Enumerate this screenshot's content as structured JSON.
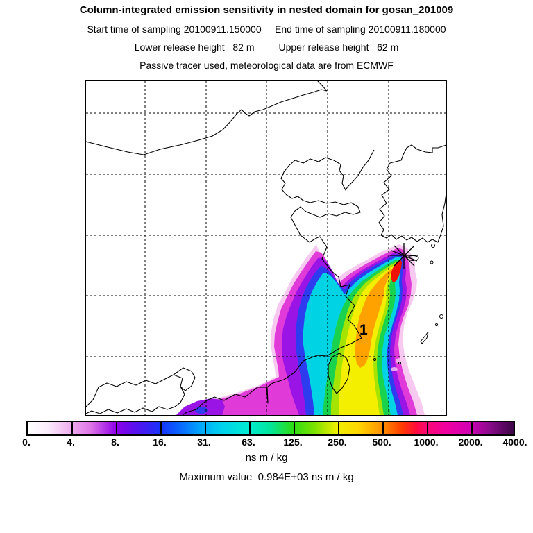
{
  "header": {
    "title": "Column-integrated emission sensitivity in nested domain for gosan_201009",
    "line2": "Start time of sampling 20100911.150000     End time of sampling 20100911.180000",
    "line3": "Lower release height   82 m         Upper release height   62 m",
    "line4": "Passive tracer used, meteorological data are from ECMWF"
  },
  "map": {
    "plume_label": "1",
    "coastline_color": "#000000",
    "grid_color": "#000000",
    "marker_color": "#000000"
  },
  "plume": {
    "band_colors": [
      "#f7c8f0",
      "#e03ad8",
      "#9a14e6",
      "#2e3cf0",
      "#00d4e4",
      "#19d24e",
      "#a4e400",
      "#f4ee00",
      "#ffa200",
      "#f01000"
    ],
    "tail_purple": "#9a14e6",
    "tail_blue": "#2e3cf0",
    "fringe_pink": "#f7c8f0"
  },
  "colorbar": {
    "ticks": [
      "0.",
      "4.",
      "8.",
      "16.",
      "31.",
      "63.",
      "125.",
      "250.",
      "500.",
      "1000.",
      "2000.",
      "4000."
    ],
    "units": "ns m / kg",
    "gradient_stops": [
      {
        "p": 0,
        "c": "#ffffff"
      },
      {
        "p": 4,
        "c": "#fceefc"
      },
      {
        "p": 9.1,
        "c": "#eeaaee"
      },
      {
        "p": 13,
        "c": "#de74e6"
      },
      {
        "p": 18.2,
        "c": "#8f00e8"
      },
      {
        "p": 22,
        "c": "#5a10ee"
      },
      {
        "p": 27.3,
        "c": "#1832fa"
      },
      {
        "p": 31,
        "c": "#0a62ff"
      },
      {
        "p": 36.4,
        "c": "#00b2fa"
      },
      {
        "p": 40,
        "c": "#00d2ec"
      },
      {
        "p": 45.5,
        "c": "#00ecd2"
      },
      {
        "p": 50,
        "c": "#00e69a"
      },
      {
        "p": 54.5,
        "c": "#2cdc16"
      },
      {
        "p": 59,
        "c": "#7ce200"
      },
      {
        "p": 63.6,
        "c": "#eeee00"
      },
      {
        "p": 68,
        "c": "#ffd800"
      },
      {
        "p": 72.7,
        "c": "#ff9600"
      },
      {
        "p": 77,
        "c": "#ff3c00"
      },
      {
        "p": 80,
        "c": "#ff0a3c"
      },
      {
        "p": 81.8,
        "c": "#fa0a6e"
      },
      {
        "p": 86,
        "c": "#f000a0"
      },
      {
        "p": 90.9,
        "c": "#d200b4"
      },
      {
        "p": 95,
        "c": "#8c0a8c"
      },
      {
        "p": 100,
        "c": "#3c0546"
      }
    ]
  },
  "footer": {
    "max_value": "Maximum value  0.984E+03 ns m / kg"
  },
  "chart_data": {
    "type": "heatmap",
    "title": "Column-integrated emission sensitivity in nested domain for gosan_201009",
    "station": "gosan_201009",
    "start_time_of_sampling": "20100911.150000",
    "end_time_of_sampling": "20100911.180000",
    "lower_release_height_m": 82,
    "upper_release_height_m": 62,
    "tracer_note": "Passive tracer used, meteorological data are from ECMWF",
    "units": "ns m / kg",
    "levels": [
      0,
      4,
      8,
      16,
      31,
      63,
      125,
      250,
      500,
      1000,
      2000,
      4000
    ],
    "max_value": "0.984E+03",
    "max_value_units": "ns m / kg",
    "legend_position": "bottom",
    "grid": "dashed lat/lon graticule, 5 vertical x 5 horizontal lines",
    "plume_contour_label": "1",
    "source_marker": "asterisk star at receptor (Gosan, south of Korea)",
    "plume_description": "High-sensitivity (red/orange/yellow, up to ~984 ns m/kg) band extends SSW from receptor past Taiwan to the bottom edge; lower values (cyan/blue/purple/pink, 1-31 ns m/kg) flare west over the SE China coast"
  }
}
